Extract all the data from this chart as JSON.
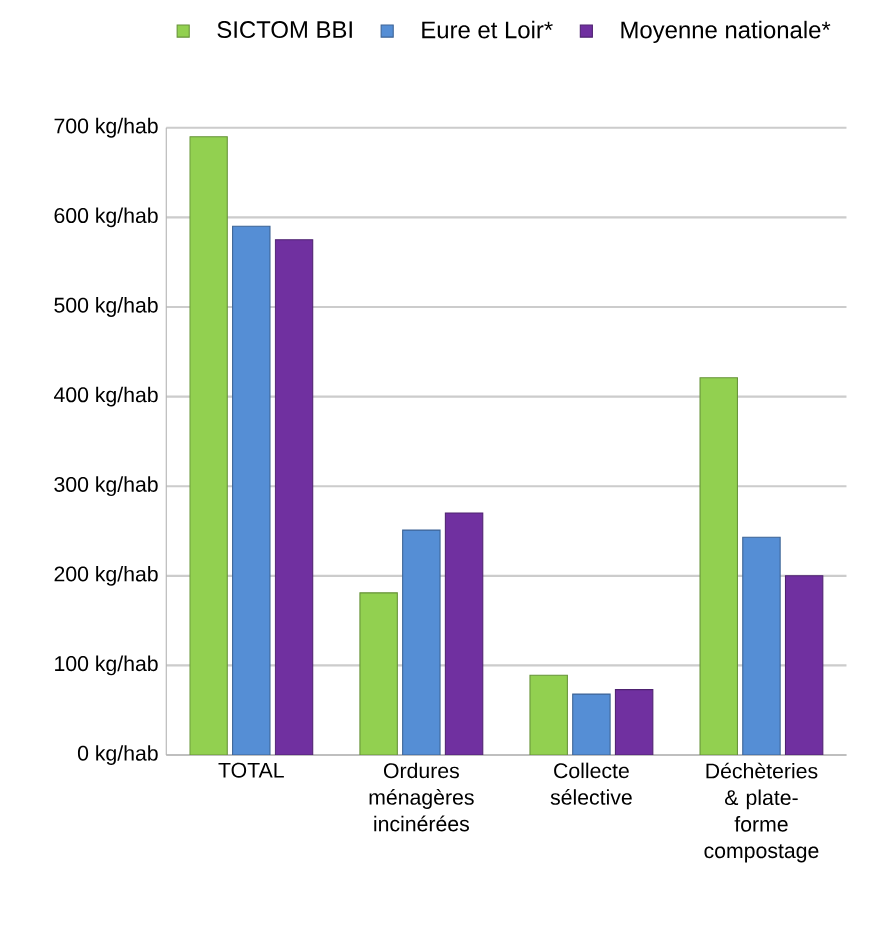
{
  "chart_data": {
    "type": "bar",
    "categories": [
      "TOTAL",
      "Ordures ménagères incinérées",
      "Collecte sélective",
      "Déchèteries & plate-forme compostage"
    ],
    "series": [
      {
        "name": "SICTOM BBI",
        "color": "#92d050",
        "values": [
          690,
          181,
          89,
          421
        ]
      },
      {
        "name": "Eure et Loir*",
        "color": "#558ed5",
        "values": [
          590,
          251,
          68,
          243
        ]
      },
      {
        "name": "Moyenne nationale*",
        "color": "#7030a0",
        "values": [
          575,
          270,
          73,
          200
        ]
      }
    ],
    "ylim": [
      0,
      700
    ],
    "yticks": [
      {
        "value": 0,
        "label": "0 kg/hab"
      },
      {
        "value": 100,
        "label": "100 kg/hab"
      },
      {
        "value": 200,
        "label": "200 kg/hab"
      },
      {
        "value": 300,
        "label": "300 kg/hab"
      },
      {
        "value": 400,
        "label": "400 kg/hab"
      },
      {
        "value": 500,
        "label": "500 kg/hab"
      },
      {
        "value": 600,
        "label": "600 kg/hab"
      },
      {
        "value": 700,
        "label": "700 kg/hab"
      }
    ],
    "grid": "y",
    "legend": "top"
  }
}
